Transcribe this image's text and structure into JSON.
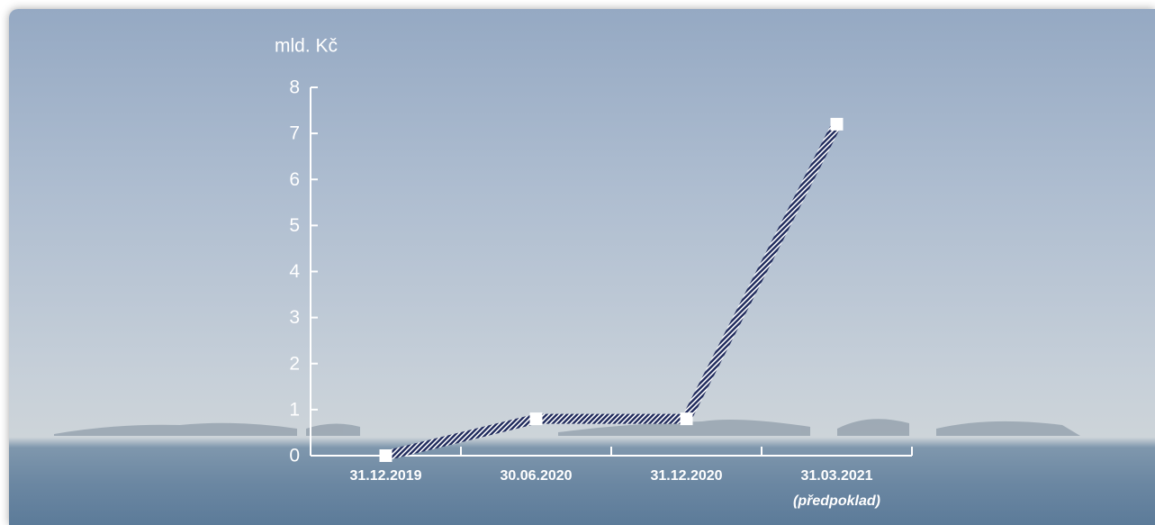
{
  "chart_data": {
    "type": "line",
    "y_axis_label": "mld. Kč",
    "categories": [
      "31.12.2019",
      "30.06.2020",
      "31.12.2020",
      "31.03.2021"
    ],
    "category_notes": [
      null,
      null,
      null,
      "(předpoklad)"
    ],
    "values": [
      0,
      0.8,
      0.8,
      7.2
    ],
    "color": "#1f2a5c",
    "ylim": [
      0,
      8
    ],
    "yticks": [
      0,
      1,
      2,
      3,
      4,
      5,
      6,
      7,
      8
    ],
    "grid": false
  }
}
